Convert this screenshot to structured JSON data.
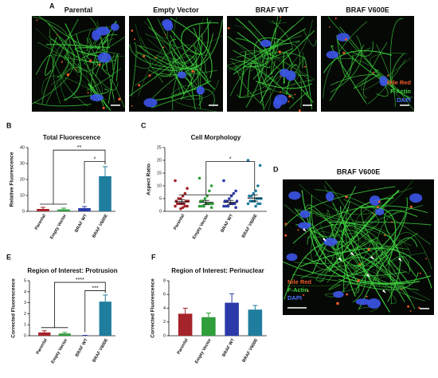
{
  "figure": {
    "panel_labels": [
      "A",
      "B",
      "C",
      "D",
      "E",
      "F"
    ],
    "images": [
      {
        "title": "Parental"
      },
      {
        "title": "Empty Vector"
      },
      {
        "title": "BRAF WT"
      },
      {
        "title": "BRAF V600E"
      }
    ],
    "image_legend": [
      {
        "text": "Nile Red",
        "color": "#ef5a2a"
      },
      {
        "text": "F-Actin",
        "color": "#3fd33f"
      },
      {
        "text": "DAPI",
        "color": "#4d72ff"
      }
    ],
    "panel_d": {
      "title": "BRAF V600E",
      "legend": [
        {
          "text": "Nile Red",
          "color": "#ef5a2a"
        },
        {
          "text": "F-Actin",
          "color": "#3fd33f"
        },
        {
          "text": "DAPI",
          "color": "#4d72ff"
        }
      ]
    }
  },
  "chart_data": [
    {
      "type": "bar",
      "title": "Total Fluorescence",
      "y_label": "Relative Fluorescence",
      "categories": [
        "Parental",
        "Empty Vector",
        "BRAF WT",
        "BRAF V600E"
      ],
      "values": [
        1.5,
        1.2,
        2,
        22
      ],
      "errors": [
        1,
        0.8,
        1,
        6
      ],
      "colors": [
        "#a5232a",
        "#2f9e3b",
        "#2b3aa8",
        "#1f7d9e"
      ],
      "ylim": [
        0,
        40
      ],
      "yticks": [
        0,
        10,
        20,
        30,
        40
      ],
      "annotations": [
        {
          "text": "**"
        },
        {
          "text": "*"
        }
      ]
    },
    {
      "type": "strip",
      "title": "Cell Morphology",
      "y_label": "Aspect Ratio",
      "categories": [
        "Parental",
        "Empty Vector",
        "BRAF WT",
        "BRAF V600E"
      ],
      "points": [
        [
          12,
          9,
          7,
          6,
          5,
          5,
          4,
          4,
          4,
          3,
          3,
          3,
          3,
          2,
          2,
          2,
          1.5,
          1
        ],
        [
          13,
          10,
          8,
          6,
          5,
          4,
          4,
          3,
          3,
          3,
          3,
          2,
          2,
          2,
          1.5
        ],
        [
          12,
          8,
          7,
          6,
          5,
          4,
          4,
          4,
          3,
          3,
          3,
          2,
          2,
          2,
          1.5
        ],
        [
          20,
          18,
          10,
          8,
          7,
          6,
          6,
          5,
          5,
          5,
          4,
          4,
          4,
          3,
          3,
          3,
          2
        ]
      ],
      "means": [
        3.8,
        3.5,
        3.5,
        5.2
      ],
      "errors": [
        0.8,
        0.8,
        0.8,
        1.2
      ],
      "colors": [
        "#a5232a",
        "#2f9e3b",
        "#2b3aa8",
        "#1f7d9e"
      ],
      "ylim": [
        0,
        25
      ],
      "yticks": [
        0,
        5,
        10,
        15,
        20,
        25
      ],
      "annotations": [
        {
          "text": "*"
        }
      ]
    },
    {
      "type": "bar",
      "title": "Region of Interest: Protrusion",
      "y_label": "Corrected Fluorescence",
      "categories": [
        "Parental",
        "Empty Vector",
        "BRAF WT",
        "BRAF V600E"
      ],
      "values": [
        0.3,
        0.2,
        0.02,
        3.1
      ],
      "errors": [
        0.15,
        0.1,
        0.02,
        0.6
      ],
      "colors": [
        "#a5232a",
        "#2f9e3b",
        "#2b3aa8",
        "#1f7d9e"
      ],
      "ylim": [
        0,
        5
      ],
      "yticks": [
        0,
        1,
        2,
        3,
        4,
        5
      ],
      "annotations": [
        {
          "text": "****"
        },
        {
          "text": "***"
        }
      ]
    },
    {
      "type": "bar",
      "title": "Region of Interest: Perinuclear",
      "y_label": "Corrected Fluorescence",
      "categories": [
        "Parental",
        "Empty Vector",
        "BRAF WT",
        "BRAF V600E"
      ],
      "values": [
        3.2,
        2.7,
        4.8,
        3.8
      ],
      "errors": [
        0.8,
        0.6,
        1.3,
        0.6
      ],
      "colors": [
        "#a5232a",
        "#2f9e3b",
        "#2b3aa8",
        "#1f7d9e"
      ],
      "ylim": [
        0,
        8
      ],
      "yticks": [
        0,
        2,
        4,
        6,
        8
      ],
      "annotations": []
    }
  ]
}
